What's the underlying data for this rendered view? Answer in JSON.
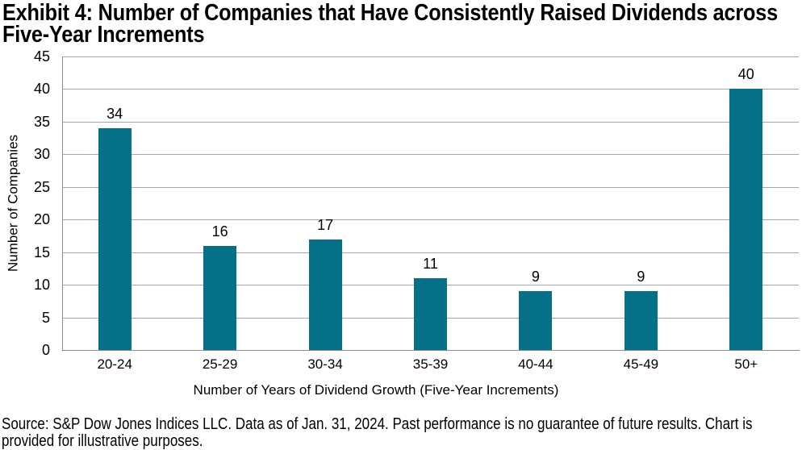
{
  "header": {
    "title_line1": "Exhibit 4: Number of Companies that Have Consistently Raised Dividends across",
    "title_line2": "Five-Year Increments"
  },
  "chart_data": {
    "type": "bar",
    "title": "Exhibit 4: Number of Companies that Have Consistently Raised Dividends across Five-Year Increments",
    "categories": [
      "20-24",
      "25-29",
      "30-34",
      "35-39",
      "40-44",
      "45-49",
      "50+"
    ],
    "values": [
      34,
      16,
      17,
      11,
      9,
      9,
      40
    ],
    "xlabel": "Number of Years of Dividend Growth (Five-Year Increments)",
    "ylabel": "Number of Companies",
    "ylim": [
      0,
      45
    ],
    "yticks": [
      0,
      5,
      10,
      15,
      20,
      25,
      30,
      35,
      40,
      45
    ],
    "grid": true,
    "data_labels": true,
    "legend": "none",
    "bar_color": "#077089",
    "gridline_color": "#A6A6A6",
    "axis_color": "#8C8C8C",
    "text_color": "#000000"
  },
  "footer": {
    "line1": "Source: S&P Dow Jones Indices LLC. Data as of Jan. 31, 2024. Past performance is no guarantee of future results. Chart is",
    "line2": "provided for illustrative purposes."
  }
}
